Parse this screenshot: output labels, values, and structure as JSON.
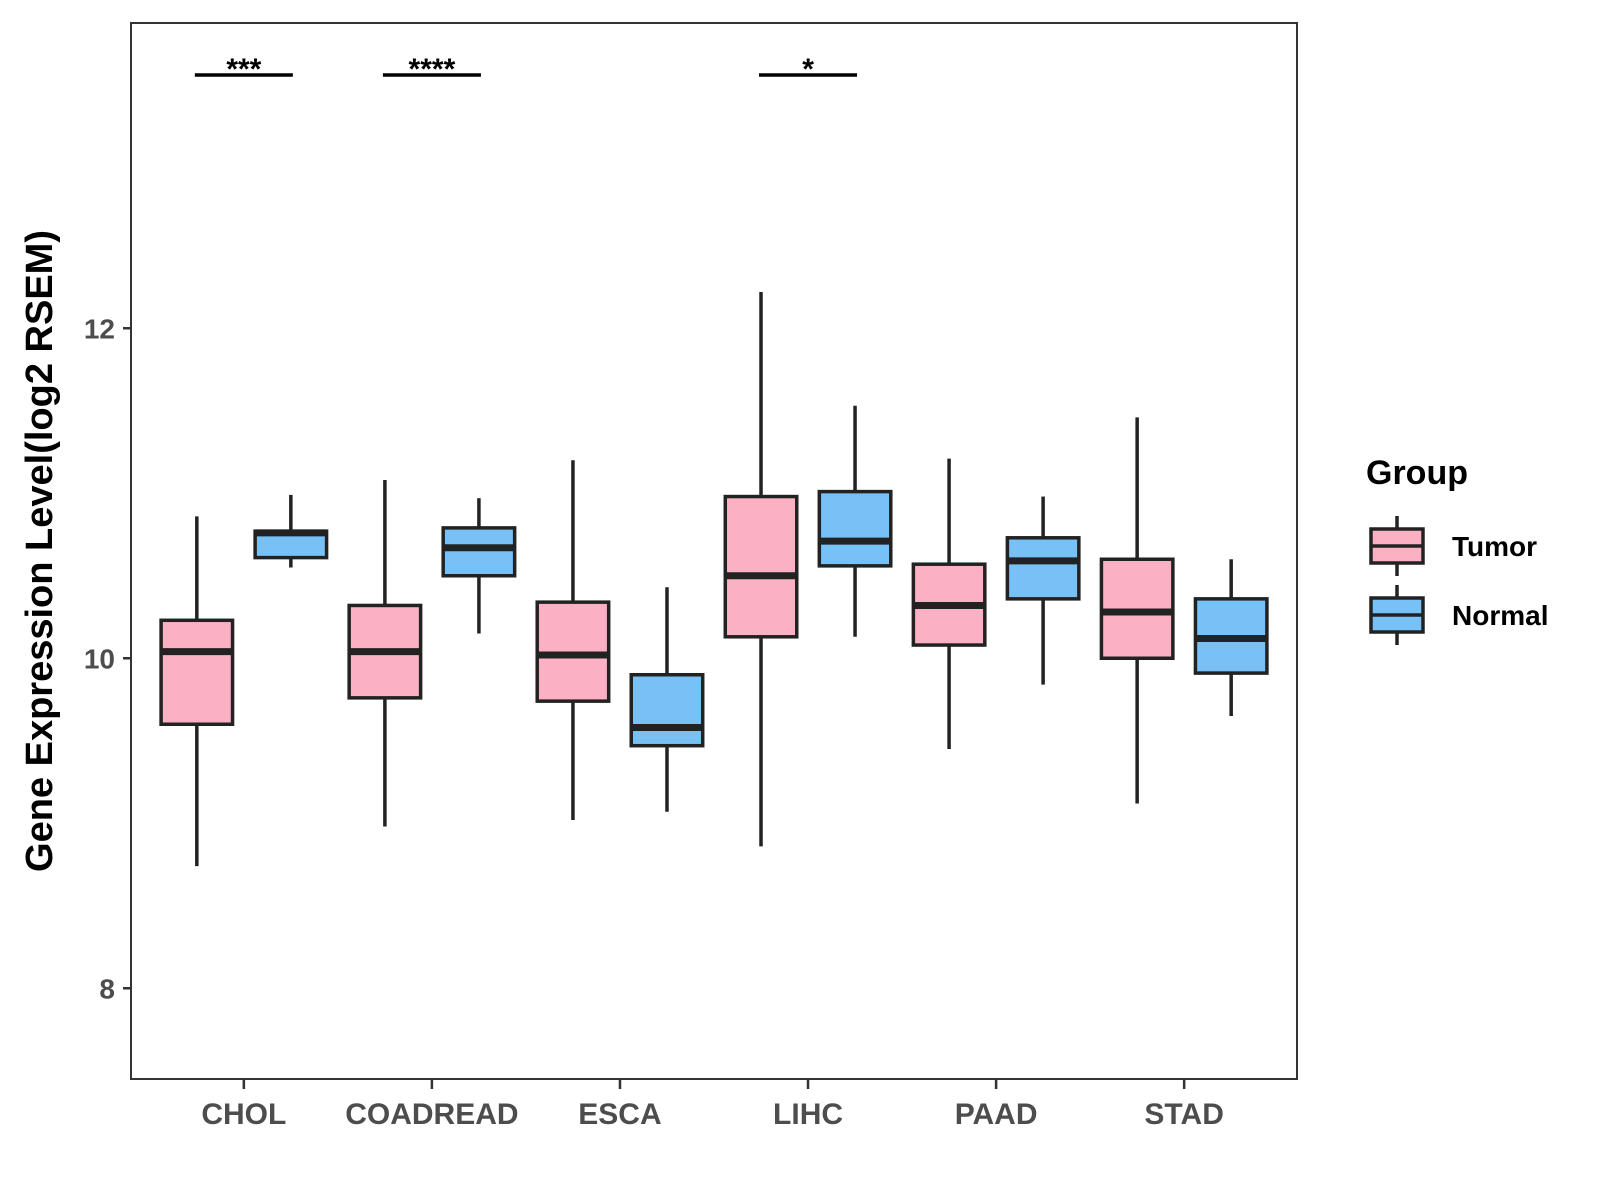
{
  "chart_data": {
    "type": "box",
    "title": "",
    "xlabel": "",
    "ylabel": "Gene Expression Level(log2 RSEM)",
    "ylim": [
      7.45,
      13.85
    ],
    "yticks": [
      8,
      10,
      12
    ],
    "ytick_labels": [
      "8",
      "10",
      "12"
    ],
    "grid": false,
    "categories": [
      "CHOL",
      "COADREAD",
      "ESCA",
      "LIHC",
      "PAAD",
      "STAD"
    ],
    "legend": {
      "title": "Group",
      "position": "right",
      "entries": [
        {
          "name": "Tumor",
          "color": "#FBB1C3"
        },
        {
          "name": "Normal",
          "color": "#78C1F7"
        }
      ]
    },
    "series": [
      {
        "name": "Tumor",
        "color": "#FBB1C3",
        "boxes": [
          {
            "min": 8.74,
            "q1": 9.6,
            "median": 10.04,
            "q3": 10.23,
            "max": 10.86
          },
          {
            "min": 8.98,
            "q1": 9.76,
            "median": 10.04,
            "q3": 10.32,
            "max": 11.08
          },
          {
            "min": 9.02,
            "q1": 9.74,
            "median": 10.02,
            "q3": 10.34,
            "max": 11.2
          },
          {
            "min": 8.86,
            "q1": 10.13,
            "median": 10.5,
            "q3": 10.98,
            "max": 12.22
          },
          {
            "min": 9.45,
            "q1": 10.08,
            "median": 10.32,
            "q3": 10.57,
            "max": 11.21
          },
          {
            "min": 9.12,
            "q1": 10.0,
            "median": 10.28,
            "q3": 10.6,
            "max": 11.46
          }
        ]
      },
      {
        "name": "Normal",
        "color": "#78C1F7",
        "boxes": [
          {
            "min": 10.55,
            "q1": 10.61,
            "median": 10.76,
            "q3": 10.77,
            "max": 10.99
          },
          {
            "min": 10.15,
            "q1": 10.5,
            "median": 10.67,
            "q3": 10.79,
            "max": 10.97
          },
          {
            "min": 9.07,
            "q1": 9.47,
            "median": 9.58,
            "q3": 9.9,
            "max": 10.43
          },
          {
            "min": 10.13,
            "q1": 10.56,
            "median": 10.71,
            "q3": 11.01,
            "max": 11.53
          },
          {
            "min": 9.84,
            "q1": 10.36,
            "median": 10.59,
            "q3": 10.73,
            "max": 10.98
          },
          {
            "min": 9.65,
            "q1": 9.91,
            "median": 10.12,
            "q3": 10.36,
            "max": 10.6
          }
        ]
      }
    ],
    "annotations": [
      {
        "category": "CHOL",
        "label": "***"
      },
      {
        "category": "COADREAD",
        "label": "****"
      },
      {
        "category": "LIHC",
        "label": "*"
      }
    ]
  }
}
